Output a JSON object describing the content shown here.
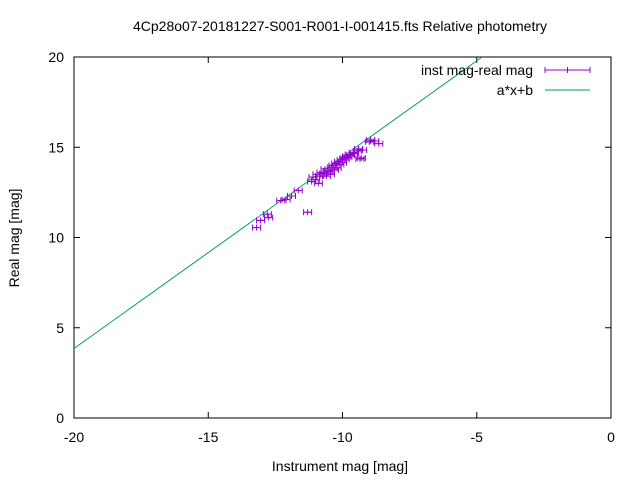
{
  "chart_data": {
    "type": "scatter",
    "title": "4Cp28o07-20181227-S001-R001-I-001415.fts Relative photometry",
    "xlabel": "Instrument mag [mag]",
    "ylabel": "Real mag [mag]",
    "xlim": [
      -20,
      0
    ],
    "ylim": [
      0,
      20
    ],
    "x_ticks": [
      -20,
      -15,
      -10,
      -5,
      0
    ],
    "y_ticks": [
      0,
      5,
      10,
      15,
      20
    ],
    "x_tick_labels": [
      "-20",
      "-15",
      "-10",
      "-5",
      "0"
    ],
    "y_tick_labels": [
      "0",
      "5",
      "10",
      "15",
      "20"
    ],
    "grid": false,
    "legend_position": "top-right",
    "series": [
      {
        "name": "inst mag-real mag",
        "kind": "points-with-xerror",
        "color": "#9400d3",
        "points": [
          [
            -13.2,
            10.55
          ],
          [
            -13.05,
            10.95
          ],
          [
            -12.8,
            11.3
          ],
          [
            -12.75,
            11.1
          ],
          [
            -12.3,
            12.05
          ],
          [
            -12.1,
            12.1
          ],
          [
            -11.9,
            12.3
          ],
          [
            -11.65,
            12.6
          ],
          [
            -11.3,
            11.4
          ],
          [
            -11.15,
            13.1
          ],
          [
            -11.1,
            13.35
          ],
          [
            -11.0,
            13.2
          ],
          [
            -10.95,
            13.5
          ],
          [
            -10.9,
            13.0
          ],
          [
            -10.85,
            13.4
          ],
          [
            -10.8,
            13.6
          ],
          [
            -10.7,
            13.55
          ],
          [
            -10.65,
            13.8
          ],
          [
            -10.6,
            13.4
          ],
          [
            -10.55,
            13.7
          ],
          [
            -10.5,
            13.65
          ],
          [
            -10.45,
            13.5
          ],
          [
            -10.4,
            13.9
          ],
          [
            -10.35,
            14.0
          ],
          [
            -10.3,
            13.75
          ],
          [
            -10.25,
            14.1
          ],
          [
            -10.2,
            13.85
          ],
          [
            -10.15,
            14.2
          ],
          [
            -10.1,
            14.05
          ],
          [
            -10.05,
            14.3
          ],
          [
            -10.0,
            14.15
          ],
          [
            -9.95,
            14.4
          ],
          [
            -9.9,
            14.35
          ],
          [
            -9.85,
            14.5
          ],
          [
            -9.8,
            14.45
          ],
          [
            -9.75,
            14.6
          ],
          [
            -9.7,
            14.55
          ],
          [
            -9.6,
            14.7
          ],
          [
            -9.55,
            14.65
          ],
          [
            -9.45,
            14.8
          ],
          [
            -9.4,
            14.9
          ],
          [
            -9.35,
            14.35
          ],
          [
            -9.3,
            14.4
          ],
          [
            -9.25,
            14.85
          ],
          [
            -9.0,
            15.3
          ],
          [
            -8.95,
            15.4
          ],
          [
            -8.8,
            15.35
          ],
          [
            -8.65,
            15.2
          ]
        ],
        "x_error": 0.15
      },
      {
        "name": "a*x+b",
        "kind": "line",
        "color": "#009e73",
        "x": [
          -20,
          -4.8
        ],
        "y": [
          3.85,
          20
        ]
      }
    ]
  }
}
